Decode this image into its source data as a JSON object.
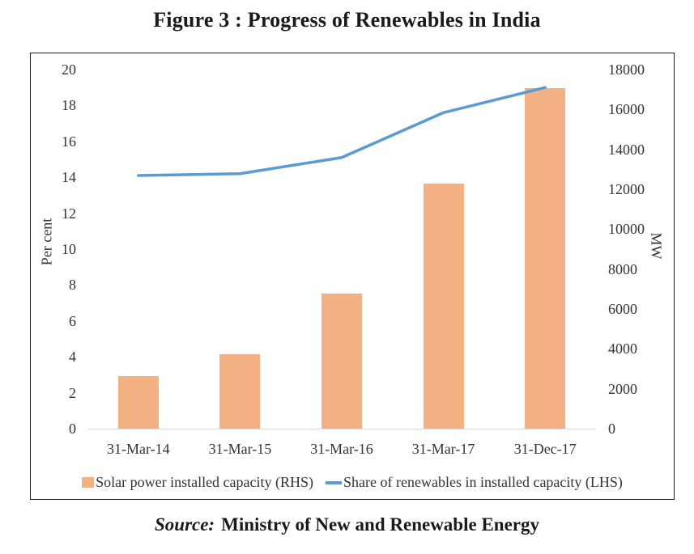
{
  "title": "Figure 3 : Progress of Renewables in India",
  "source": {
    "label": "Source:",
    "text": "Ministry of New and Renewable Energy"
  },
  "colors": {
    "bar": "#F4B183",
    "line": "#5B9BD5",
    "axis_text": "#333333",
    "baseline": "#D9D9D9",
    "border": "#1A1A1A"
  },
  "chart_data": {
    "type": "combo",
    "subtypes": [
      "bar",
      "line"
    ],
    "categories": [
      "31-Mar-14",
      "31-Mar-15",
      "31-Mar-16",
      "31-Mar-17",
      "31-Dec-17"
    ],
    "series": [
      {
        "name": "Solar power installed capacity (RHS)",
        "type": "bar",
        "axis": "right",
        "color": "#F4B183",
        "values": [
          2632,
          3744,
          6763,
          12289,
          17052
        ]
      },
      {
        "name": "Share of renewables in installed capacity (LHS)",
        "type": "line",
        "axis": "left",
        "color": "#5B9BD5",
        "values": [
          14.1,
          14.2,
          15.1,
          17.6,
          19.0
        ]
      }
    ],
    "left_axis": {
      "label": "Per cent",
      "min": 0,
      "max": 20,
      "step": 2,
      "ticks": [
        0,
        2,
        4,
        6,
        8,
        10,
        12,
        14,
        16,
        18,
        20
      ]
    },
    "right_axis": {
      "label": "MW",
      "min": 0,
      "max": 18000,
      "step": 2000,
      "ticks": [
        0,
        2000,
        4000,
        6000,
        8000,
        10000,
        12000,
        14000,
        16000,
        18000
      ]
    },
    "grid": false,
    "legend_position": "bottom"
  }
}
